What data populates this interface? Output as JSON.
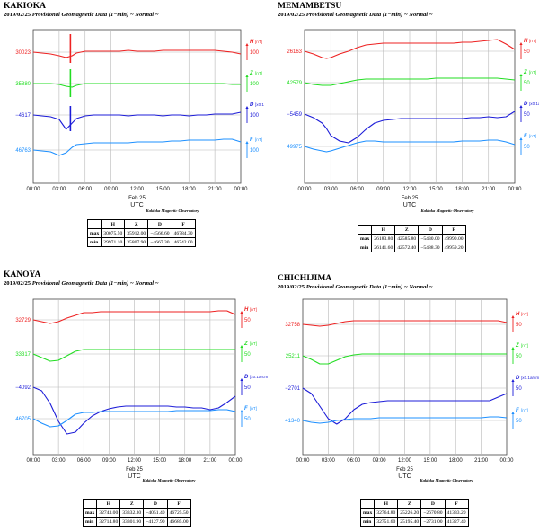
{
  "colors": {
    "H": "#ee2222",
    "Z": "#22dd22",
    "D": "#1c1cd8",
    "F": "#1e90ff",
    "spike": "#118811",
    "grid": "#b8b8b8"
  },
  "x_ticks": [
    "00:00",
    "03:00",
    "06:00",
    "09:00",
    "12:00",
    "15:00",
    "18:00",
    "21:00",
    "00:00"
  ],
  "x_date": "Feb 25",
  "x_label": "UTC",
  "observatory": "Kakioka Magnetic Observatory",
  "subtitle_date": "2019/02/25",
  "subtitle_text": "Provisional Geomagnetic Data (1−min)",
  "subtitle_mode": "~ Normal ~",
  "table_cols": [
    "H",
    "Z",
    "D",
    "F"
  ],
  "row_labels": [
    "max",
    "min"
  ],
  "panels": [
    {
      "station": "KAKIOKA",
      "left_values": {
        "H": "30023",
        "Z": "35880",
        "D": "−4617",
        "F": "46763"
      },
      "right_scale": {
        "H": "100",
        "Z": "100",
        "D": "100",
        "F": "100"
      },
      "right_units": {
        "H": "[nT]",
        "Z": "[nT]",
        "D": "[x0.1",
        "F": "[nT]"
      },
      "table": {
        "max": [
          "30075.50",
          "35912.00",
          "−4566.60",
          "46784.30"
        ],
        "min": [
          "29971.10",
          "35807.90",
          "−4667.30",
          "46742.00"
        ]
      },
      "chart_data": {
        "type": "line",
        "x": [
          0,
          1,
          2,
          3,
          3.8,
          4.5,
          5,
          6,
          7,
          8,
          9,
          10,
          11,
          12,
          13,
          14,
          15,
          16,
          17,
          18,
          19,
          20,
          21,
          22,
          23,
          24
        ],
        "series": [
          {
            "name": "H",
            "values": [
              0,
              -1,
              -2,
              -4,
              -6,
              -4,
              -1,
              1,
              1,
              1,
              1,
              1,
              2,
              1,
              1,
              1,
              2,
              2,
              2,
              2,
              2,
              2,
              2,
              1,
              0,
              -2
            ]
          },
          {
            "name": "Z",
            "values": [
              0,
              0,
              0,
              -1,
              -3,
              -4,
              -2,
              0,
              0,
              0,
              0,
              0,
              0,
              0,
              0,
              0,
              0,
              0,
              0,
              0,
              0,
              0,
              0,
              0,
              -1,
              -1
            ]
          },
          {
            "name": "D",
            "values": [
              0,
              -1,
              -2,
              -5,
              -16,
              -9,
              -4,
              -1,
              0,
              0,
              0,
              0,
              -1,
              0,
              0,
              0,
              -1,
              0,
              0,
              -1,
              0,
              0,
              1,
              1,
              1,
              3
            ]
          },
          {
            "name": "F",
            "values": [
              0,
              -1,
              -2,
              -6,
              -3,
              3,
              6,
              7,
              8,
              8,
              8,
              8,
              8,
              9,
              9,
              9,
              9,
              10,
              10,
              11,
              11,
              11,
              11,
              12,
              12,
              9
            ]
          }
        ],
        "spike": {
          "x": 4.3
        }
      }
    },
    {
      "station": "MEMAMBETSU",
      "left_values": {
        "H": "26163",
        "Z": "42579",
        "D": "−5459",
        "F": "49975"
      },
      "right_scale": {
        "H": "50",
        "Z": "50",
        "D": "50",
        "F": "50"
      },
      "right_units": {
        "H": "[nT]",
        "Z": "[nT]",
        "D": "[x0.1arcm",
        "F": "[nT]"
      },
      "table": {
        "max": [
          "26183.80",
          "42585.80",
          "−5430.00",
          "49990.00"
        ],
        "min": [
          "26141.60",
          "42572.40",
          "−5488.30",
          "49959.20"
        ]
      },
      "chart_data": {
        "type": "line",
        "x": [
          0,
          1,
          2,
          2.5,
          3,
          4,
          5,
          6,
          7,
          8,
          9,
          10,
          11,
          12,
          13,
          14,
          15,
          16,
          17,
          18,
          19,
          20,
          21,
          22,
          23,
          24
        ],
        "series": [
          {
            "name": "H",
            "values": [
              0,
              -3,
              -7,
              -8,
              -7,
              -3,
              0,
              4,
              7,
              8,
              9,
              9,
              9,
              9,
              9,
              9,
              9,
              9,
              9,
              10,
              10,
              11,
              12,
              13,
              8,
              2
            ]
          },
          {
            "name": "Z",
            "values": [
              0,
              -2,
              -3,
              -3,
              -3,
              -1,
              1,
              3,
              4,
              4,
              4,
              4,
              4,
              4,
              4,
              4,
              5,
              5,
              5,
              5,
              5,
              5,
              5,
              5,
              4,
              3
            ]
          },
          {
            "name": "D",
            "values": [
              0,
              -4,
              -10,
              -16,
              -24,
              -30,
              -32,
              -26,
              -17,
              -10,
              -7,
              -6,
              -5,
              -5,
              -5,
              -5,
              -5,
              -5,
              -5,
              -5,
              -4,
              -4,
              -3,
              -4,
              -3,
              3
            ]
          },
          {
            "name": "F",
            "values": [
              0,
              -3,
              -5,
              -6,
              -5,
              -2,
              1,
              4,
              6,
              6,
              5,
              5,
              5,
              5,
              5,
              5,
              5,
              5,
              5,
              6,
              6,
              6,
              7,
              7,
              5,
              2
            ]
          }
        ]
      }
    },
    {
      "station": "KANOYA",
      "left_values": {
        "H": "32729",
        "Z": "33317",
        "D": "−4092",
        "F": "46705"
      },
      "right_scale": {
        "H": "50",
        "Z": "50",
        "D": "50",
        "F": "50"
      },
      "right_units": {
        "H": "[nT]",
        "Z": "[nT]",
        "D": "[x0.1arcm",
        "F": "[nT]"
      },
      "table": {
        "max": [
          "32743.00",
          "33332.30",
          "−4051.40",
          "46725.50"
        ],
        "min": [
          "32714.80",
          "33301.90",
          "−4127.90",
          "46685.00"
        ]
      },
      "chart_data": {
        "type": "line",
        "x": [
          0,
          1,
          2,
          3,
          4,
          5,
          6,
          7,
          8,
          9,
          10,
          11,
          12,
          13,
          14,
          15,
          16,
          17,
          18,
          19,
          20,
          21,
          22,
          23,
          24
        ],
        "series": [
          {
            "name": "H",
            "values": [
              0,
              -2,
              -4,
              -2,
              2,
              5,
              8,
              8,
              9,
              9,
              9,
              9,
              9,
              9,
              9,
              9,
              9,
              9,
              9,
              9,
              9,
              9,
              10,
              10,
              6
            ]
          },
          {
            "name": "Z",
            "values": [
              0,
              -4,
              -8,
              -7,
              -2,
              3,
              5,
              5,
              5,
              5,
              5,
              5,
              5,
              5,
              5,
              5,
              5,
              5,
              5,
              5,
              5,
              5,
              5,
              5,
              5
            ]
          },
          {
            "name": "D",
            "values": [
              0,
              -4,
              -18,
              -38,
              -52,
              -50,
              -40,
              -32,
              -27,
              -24,
              -22,
              -21,
              -21,
              -21,
              -21,
              -21,
              -21,
              -22,
              -22,
              -23,
              -23,
              -25,
              -23,
              -17,
              -10
            ]
          },
          {
            "name": "F",
            "values": [
              0,
              -5,
              -9,
              -8,
              -2,
              5,
              7,
              7,
              8,
              8,
              8,
              8,
              8,
              8,
              8,
              8,
              8,
              9,
              9,
              9,
              9,
              9,
              10,
              10,
              8
            ]
          }
        ]
      }
    },
    {
      "station": "CHICHIJIMA",
      "left_values": {
        "H": "32758",
        "Z": "25211",
        "D": "−2701",
        "F": "41340"
      },
      "right_scale": {
        "H": "50",
        "Z": "50",
        "D": "50",
        "F": "50"
      },
      "right_units": {
        "H": "[nT]",
        "Z": "[nT]",
        "D": "[x0.1arcm",
        "F": "[nT]"
      },
      "table": {
        "max": [
          "32764.80",
          "25226.20",
          "−2670.80",
          "41333.20"
        ],
        "min": [
          "32751.60",
          "25195.40",
          "−2731.00",
          "41327.40"
        ]
      },
      "chart_data": {
        "type": "line",
        "x": [
          0,
          1,
          2,
          3,
          4,
          5,
          6,
          7,
          8,
          9,
          10,
          11,
          12,
          13,
          14,
          15,
          16,
          17,
          18,
          19,
          20,
          21,
          22,
          23,
          24
        ],
        "series": [
          {
            "name": "H",
            "values": [
              0,
              -1,
              -2,
              -1,
              1,
              3,
              4,
              4,
              4,
              4,
              4,
              4,
              4,
              4,
              4,
              4,
              4,
              4,
              4,
              4,
              4,
              4,
              4,
              4,
              2
            ]
          },
          {
            "name": "Z",
            "values": [
              0,
              -4,
              -9,
              -9,
              -5,
              -1,
              1,
              2,
              2,
              2,
              2,
              2,
              2,
              2,
              2,
              2,
              2,
              2,
              2,
              2,
              2,
              2,
              2,
              2,
              2
            ]
          },
          {
            "name": "D",
            "values": [
              0,
              -6,
              -20,
              -34,
              -40,
              -34,
              -24,
              -18,
              -16,
              -15,
              -14,
              -14,
              -14,
              -14,
              -14,
              -14,
              -14,
              -14,
              -14,
              -14,
              -14,
              -14,
              -14,
              -10,
              -6
            ]
          },
          {
            "name": "F",
            "values": [
              0,
              -2,
              -3,
              -2,
              0,
              1,
              2,
              2,
              2,
              3,
              3,
              3,
              3,
              3,
              3,
              3,
              3,
              3,
              3,
              3,
              3,
              3,
              4,
              4,
              3
            ]
          }
        ]
      }
    }
  ]
}
